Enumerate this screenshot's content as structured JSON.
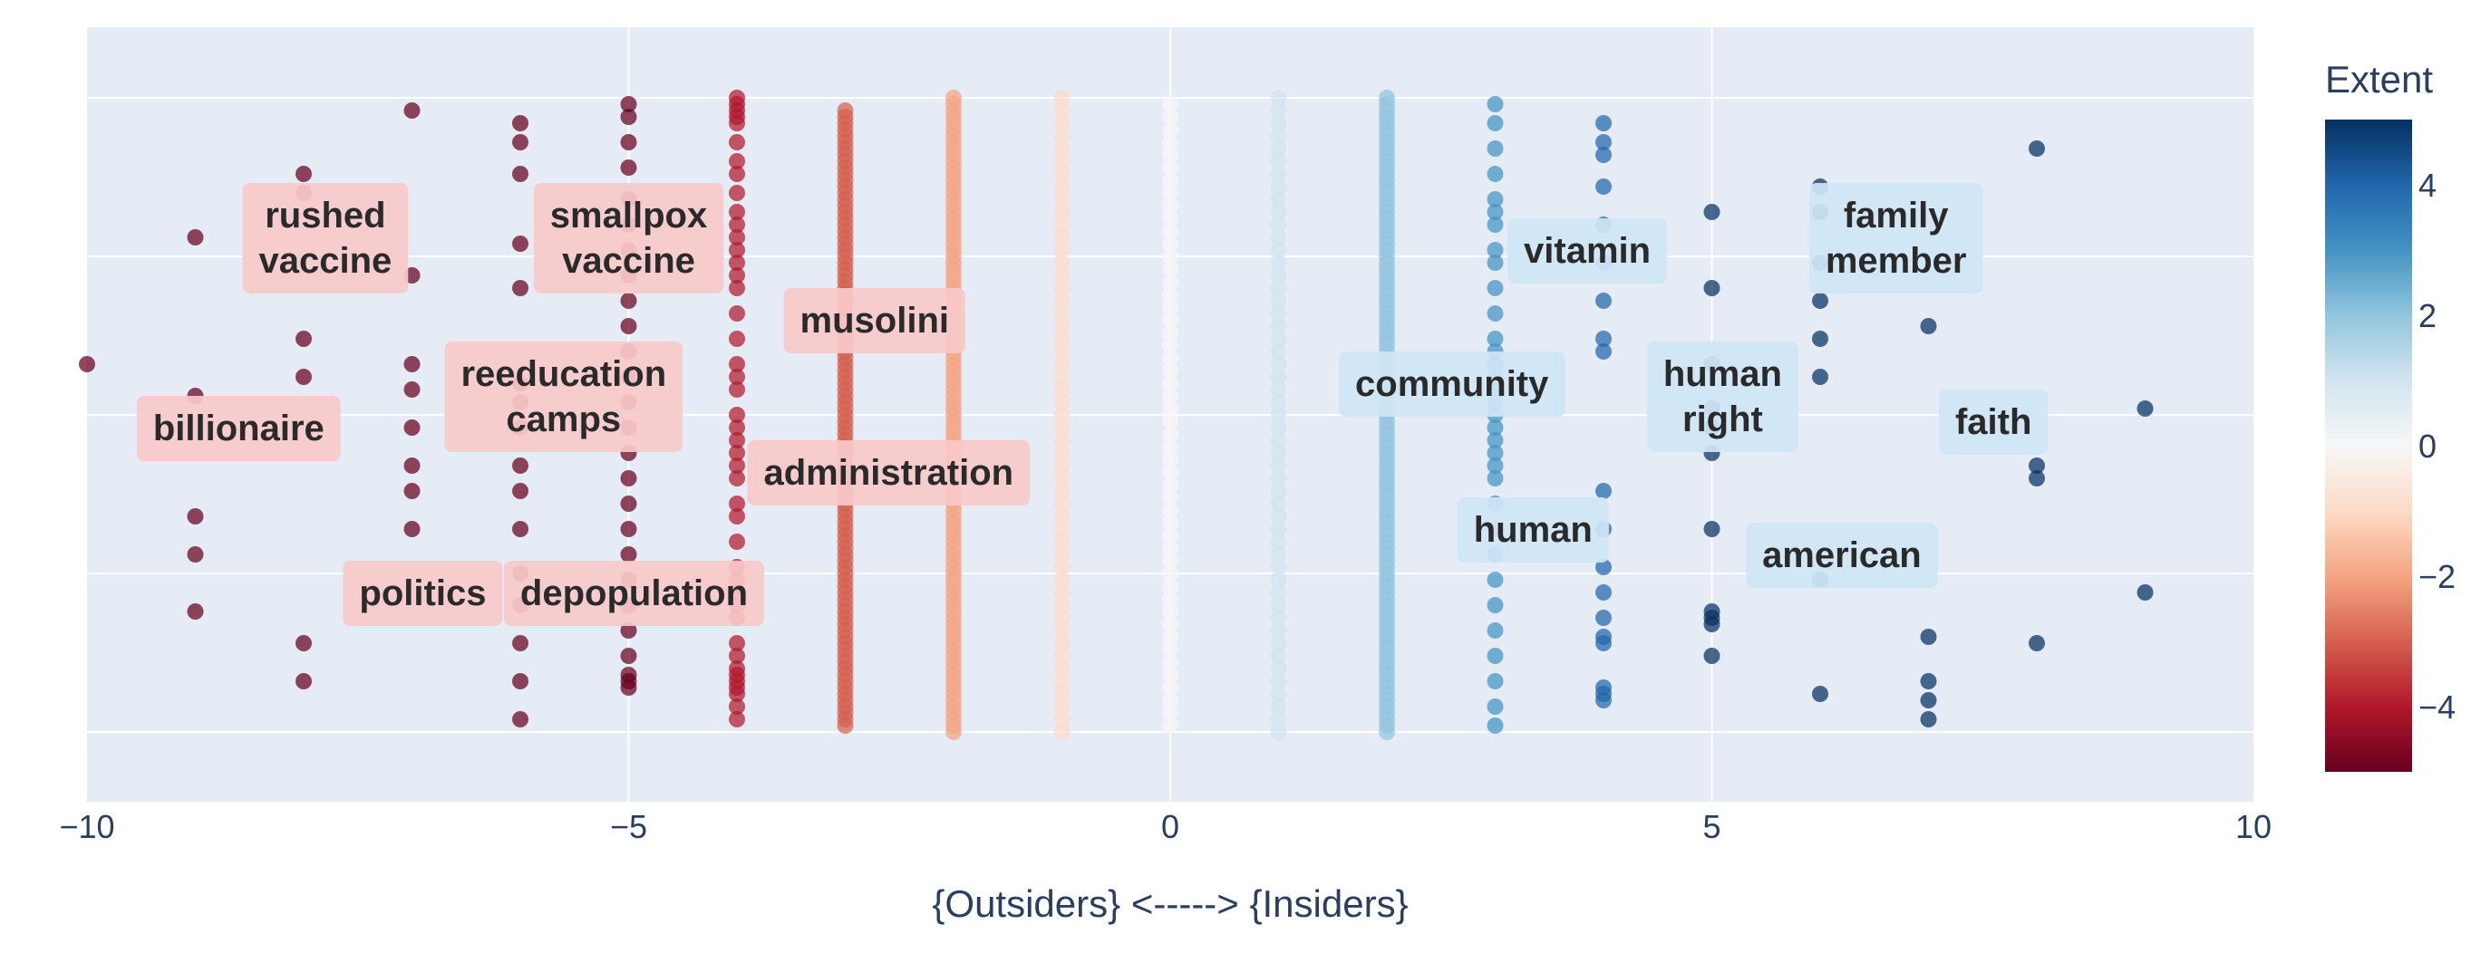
{
  "chart_data": {
    "type": "scatter",
    "xlabel": "{Outsiders} <-----> {Insiders}",
    "xlim": [
      -10,
      10
    ],
    "x_ticks": [
      -10,
      -5,
      0,
      5,
      10
    ],
    "x_tick_labels": [
      "−10",
      "−5",
      "0",
      "5",
      "10"
    ],
    "ylim": [
      0,
      1
    ],
    "grid": true,
    "colorbar": {
      "title": "Extent",
      "range": [
        -5,
        5
      ],
      "ticks": [
        4,
        2,
        0,
        -2,
        -4
      ],
      "tick_labels": [
        "4",
        "2",
        "0",
        "−2",
        "−4"
      ],
      "colorscale": "RdBu"
    },
    "columns": [
      {
        "x": -10,
        "y": [
          0.58
        ]
      },
      {
        "x": -9,
        "y": [
          0.78,
          0.53,
          0.34,
          0.28,
          0.19
        ]
      },
      {
        "x": -8,
        "y": [
          0.88,
          0.85,
          0.62,
          0.56,
          0.14,
          0.08
        ]
      },
      {
        "x": -7,
        "y": [
          0.98,
          0.72,
          0.58,
          0.54,
          0.48,
          0.42,
          0.38,
          0.32
        ]
      },
      {
        "x": -6,
        "y": [
          0.96,
          0.93,
          0.88,
          0.77,
          0.7,
          0.55,
          0.52,
          0.48,
          0.42,
          0.38,
          0.32,
          0.25,
          0.2,
          0.14,
          0.08,
          0.02
        ]
      },
      {
        "x": -5,
        "y": [
          0.99,
          0.97,
          0.93,
          0.89,
          0.84,
          0.8,
          0.76,
          0.72,
          0.68,
          0.64,
          0.6,
          0.56,
          0.52,
          0.48,
          0.44,
          0.4,
          0.36,
          0.32,
          0.28,
          0.24,
          0.2,
          0.16,
          0.12,
          0.09,
          0.08,
          0.07
        ]
      },
      {
        "x": -4,
        "y": [
          1.0,
          0.99,
          0.98,
          0.97,
          0.96,
          0.93,
          0.9,
          0.88,
          0.85,
          0.82,
          0.8,
          0.78,
          0.76,
          0.74,
          0.72,
          0.7,
          0.66,
          0.62,
          0.58,
          0.56,
          0.54,
          0.5,
          0.48,
          0.46,
          0.44,
          0.42,
          0.4,
          0.36,
          0.34,
          0.3,
          0.26,
          0.24,
          0.22,
          0.2,
          0.18,
          0.14,
          0.12,
          0.1,
          0.09,
          0.08,
          0.07,
          0.06,
          0.04,
          0.02
        ]
      },
      {
        "x": -3,
        "y": [
          0.98,
          0.97,
          0.96,
          0.95,
          0.94,
          0.93,
          0.92,
          0.91,
          0.9,
          0.89,
          0.88,
          0.87,
          0.86,
          0.85,
          0.84,
          0.83,
          0.82,
          0.81,
          0.8,
          0.79,
          0.78,
          0.77,
          0.76,
          0.75,
          0.74,
          0.73,
          0.72,
          0.71,
          0.7,
          0.69,
          0.68,
          0.67,
          0.66,
          0.65,
          0.64,
          0.63,
          0.62,
          0.61,
          0.6,
          0.59,
          0.58,
          0.57,
          0.56,
          0.55,
          0.54,
          0.53,
          0.52,
          0.51,
          0.5,
          0.49,
          0.48,
          0.47,
          0.46,
          0.45,
          0.44,
          0.43,
          0.42,
          0.41,
          0.4,
          0.39,
          0.38,
          0.37,
          0.36,
          0.35,
          0.34,
          0.33,
          0.32,
          0.31,
          0.3,
          0.29,
          0.28,
          0.27,
          0.26,
          0.25,
          0.24,
          0.23,
          0.22,
          0.21,
          0.2,
          0.19,
          0.18,
          0.17,
          0.16,
          0.15,
          0.14,
          0.13,
          0.12,
          0.11,
          0.1,
          0.09,
          0.08,
          0.07,
          0.06,
          0.05,
          0.04,
          0.03,
          0.02,
          0.01
        ]
      },
      {
        "x": -2,
        "y": [
          1.0,
          0.99,
          0.98,
          0.97,
          0.96,
          0.95,
          0.94,
          0.93,
          0.92,
          0.91,
          0.9,
          0.89,
          0.88,
          0.87,
          0.86,
          0.85,
          0.84,
          0.83,
          0.82,
          0.81,
          0.8,
          0.79,
          0.78,
          0.77,
          0.76,
          0.75,
          0.74,
          0.73,
          0.72,
          0.71,
          0.7,
          0.69,
          0.68,
          0.67,
          0.66,
          0.65,
          0.64,
          0.63,
          0.62,
          0.61,
          0.6,
          0.59,
          0.58,
          0.57,
          0.56,
          0.55,
          0.54,
          0.53,
          0.52,
          0.51,
          0.5,
          0.49,
          0.48,
          0.47,
          0.46,
          0.45,
          0.44,
          0.43,
          0.42,
          0.41,
          0.4,
          0.39,
          0.38,
          0.37,
          0.36,
          0.35,
          0.34,
          0.33,
          0.32,
          0.31,
          0.3,
          0.29,
          0.28,
          0.27,
          0.26,
          0.25,
          0.24,
          0.23,
          0.22,
          0.21,
          0.2,
          0.19,
          0.18,
          0.17,
          0.16,
          0.15,
          0.14,
          0.13,
          0.12,
          0.11,
          0.1,
          0.09,
          0.08,
          0.07,
          0.06,
          0.05,
          0.04,
          0.03,
          0.02,
          0.01,
          0.0
        ]
      },
      {
        "x": -1,
        "y": [
          1.0,
          0.98,
          0.96,
          0.94,
          0.92,
          0.9,
          0.88,
          0.86,
          0.84,
          0.82,
          0.8,
          0.78,
          0.76,
          0.74,
          0.72,
          0.7,
          0.68,
          0.66,
          0.64,
          0.62,
          0.6,
          0.58,
          0.56,
          0.54,
          0.52,
          0.5,
          0.48,
          0.46,
          0.44,
          0.42,
          0.4,
          0.38,
          0.36,
          0.34,
          0.32,
          0.3,
          0.28,
          0.26,
          0.24,
          0.22,
          0.2,
          0.18,
          0.16,
          0.14,
          0.12,
          0.1,
          0.08,
          0.06,
          0.04,
          0.02,
          0.0
        ]
      },
      {
        "x": 0,
        "y": [
          0.99,
          0.97,
          0.95,
          0.93,
          0.91,
          0.89,
          0.87,
          0.85,
          0.83,
          0.81,
          0.79,
          0.77,
          0.75,
          0.73,
          0.71,
          0.69,
          0.67,
          0.65,
          0.63,
          0.61,
          0.59,
          0.57,
          0.55,
          0.53,
          0.51,
          0.49,
          0.47,
          0.45,
          0.43,
          0.41,
          0.39,
          0.37,
          0.35,
          0.33,
          0.31,
          0.29,
          0.27,
          0.25,
          0.23,
          0.21,
          0.19,
          0.17,
          0.15,
          0.13,
          0.11,
          0.09,
          0.07,
          0.05,
          0.03,
          0.01
        ]
      },
      {
        "x": 1,
        "y": [
          1.0,
          0.98,
          0.96,
          0.94,
          0.92,
          0.9,
          0.88,
          0.86,
          0.84,
          0.82,
          0.8,
          0.78,
          0.76,
          0.74,
          0.72,
          0.7,
          0.68,
          0.66,
          0.64,
          0.62,
          0.6,
          0.58,
          0.56,
          0.54,
          0.52,
          0.5,
          0.48,
          0.46,
          0.44,
          0.42,
          0.4,
          0.38,
          0.36,
          0.34,
          0.32,
          0.3,
          0.28,
          0.26,
          0.24,
          0.22,
          0.2,
          0.18,
          0.16,
          0.14,
          0.12,
          0.1,
          0.08,
          0.06,
          0.04,
          0.02,
          0.0
        ]
      },
      {
        "x": 2,
        "y": [
          1.0,
          0.99,
          0.98,
          0.97,
          0.96,
          0.95,
          0.94,
          0.93,
          0.92,
          0.91,
          0.9,
          0.89,
          0.88,
          0.87,
          0.86,
          0.85,
          0.84,
          0.83,
          0.82,
          0.81,
          0.8,
          0.79,
          0.78,
          0.77,
          0.76,
          0.75,
          0.74,
          0.73,
          0.72,
          0.71,
          0.7,
          0.69,
          0.68,
          0.67,
          0.66,
          0.65,
          0.64,
          0.63,
          0.62,
          0.61,
          0.6,
          0.59,
          0.58,
          0.57,
          0.56,
          0.55,
          0.54,
          0.53,
          0.52,
          0.51,
          0.5,
          0.49,
          0.48,
          0.47,
          0.46,
          0.45,
          0.44,
          0.43,
          0.42,
          0.41,
          0.4,
          0.39,
          0.38,
          0.37,
          0.36,
          0.35,
          0.34,
          0.33,
          0.32,
          0.31,
          0.3,
          0.29,
          0.28,
          0.27,
          0.26,
          0.25,
          0.24,
          0.23,
          0.22,
          0.21,
          0.2,
          0.19,
          0.18,
          0.17,
          0.16,
          0.15,
          0.14,
          0.13,
          0.12,
          0.11,
          0.1,
          0.09,
          0.08,
          0.07,
          0.06,
          0.05,
          0.04,
          0.03,
          0.02,
          0.01,
          0.0
        ]
      },
      {
        "x": 3,
        "y": [
          0.99,
          0.96,
          0.92,
          0.88,
          0.84,
          0.82,
          0.8,
          0.76,
          0.74,
          0.7,
          0.66,
          0.62,
          0.6,
          0.58,
          0.56,
          0.54,
          0.52,
          0.5,
          0.48,
          0.46,
          0.44,
          0.42,
          0.4,
          0.36,
          0.32,
          0.28,
          0.24,
          0.2,
          0.16,
          0.12,
          0.08,
          0.04,
          0.01
        ]
      },
      {
        "x": 4,
        "y": [
          0.96,
          0.93,
          0.91,
          0.86,
          0.8,
          0.74,
          0.68,
          0.62,
          0.6,
          0.38,
          0.32,
          0.26,
          0.22,
          0.18,
          0.15,
          0.14,
          0.07,
          0.06,
          0.05
        ]
      },
      {
        "x": 5,
        "y": [
          0.82,
          0.7,
          0.58,
          0.51,
          0.48,
          0.44,
          0.32,
          0.19,
          0.18,
          0.17,
          0.12
        ]
      },
      {
        "x": 6,
        "y": [
          0.86,
          0.82,
          0.74,
          0.68,
          0.62,
          0.56,
          0.24,
          0.06
        ]
      },
      {
        "x": 7,
        "y": [
          0.64,
          0.15,
          0.08,
          0.05,
          0.02
        ]
      },
      {
        "x": 8,
        "y": [
          0.92,
          0.42,
          0.4,
          0.14
        ]
      },
      {
        "x": 9,
        "y": [
          0.51,
          0.22
        ]
      }
    ],
    "annotations": [
      {
        "lines": [
          "rushed",
          "vaccine"
        ],
        "x": -7.8,
        "y": 0.78,
        "side": "outsider"
      },
      {
        "lines": [
          "smallpox",
          "vaccine"
        ],
        "x": -5.0,
        "y": 0.78,
        "side": "outsider"
      },
      {
        "lines": [
          "musolini"
        ],
        "x": -2.73,
        "y": 0.65,
        "side": "outsider"
      },
      {
        "lines": [
          "reeducation",
          "camps"
        ],
        "x": -5.6,
        "y": 0.53,
        "side": "outsider"
      },
      {
        "lines": [
          "billionaire"
        ],
        "x": -8.6,
        "y": 0.48,
        "side": "outsider"
      },
      {
        "lines": [
          "administration"
        ],
        "x": -2.6,
        "y": 0.41,
        "side": "outsider"
      },
      {
        "lines": [
          "politics"
        ],
        "x": -6.9,
        "y": 0.22,
        "side": "outsider"
      },
      {
        "lines": [
          "depopulation"
        ],
        "x": -4.95,
        "y": 0.22,
        "side": "outsider"
      },
      {
        "lines": [
          "vitamin"
        ],
        "x": 3.85,
        "y": 0.76,
        "side": "insider"
      },
      {
        "lines": [
          "family",
          "member"
        ],
        "x": 6.7,
        "y": 0.78,
        "side": "insider"
      },
      {
        "lines": [
          "community"
        ],
        "x": 2.6,
        "y": 0.55,
        "side": "insider"
      },
      {
        "lines": [
          "human",
          "right"
        ],
        "x": 5.1,
        "y": 0.53,
        "side": "insider"
      },
      {
        "lines": [
          "faith"
        ],
        "x": 7.6,
        "y": 0.49,
        "side": "insider"
      },
      {
        "lines": [
          "human"
        ],
        "x": 3.35,
        "y": 0.32,
        "side": "insider"
      },
      {
        "lines": [
          "american"
        ],
        "x": 6.2,
        "y": 0.28,
        "side": "insider"
      }
    ],
    "colors": {
      "plot_bg": "#e5ecf6",
      "grid": "#ffffff",
      "text": "#2a3f5f",
      "outsider_box": "#f8c9c9",
      "insider_box": "#cfe6f5"
    }
  }
}
